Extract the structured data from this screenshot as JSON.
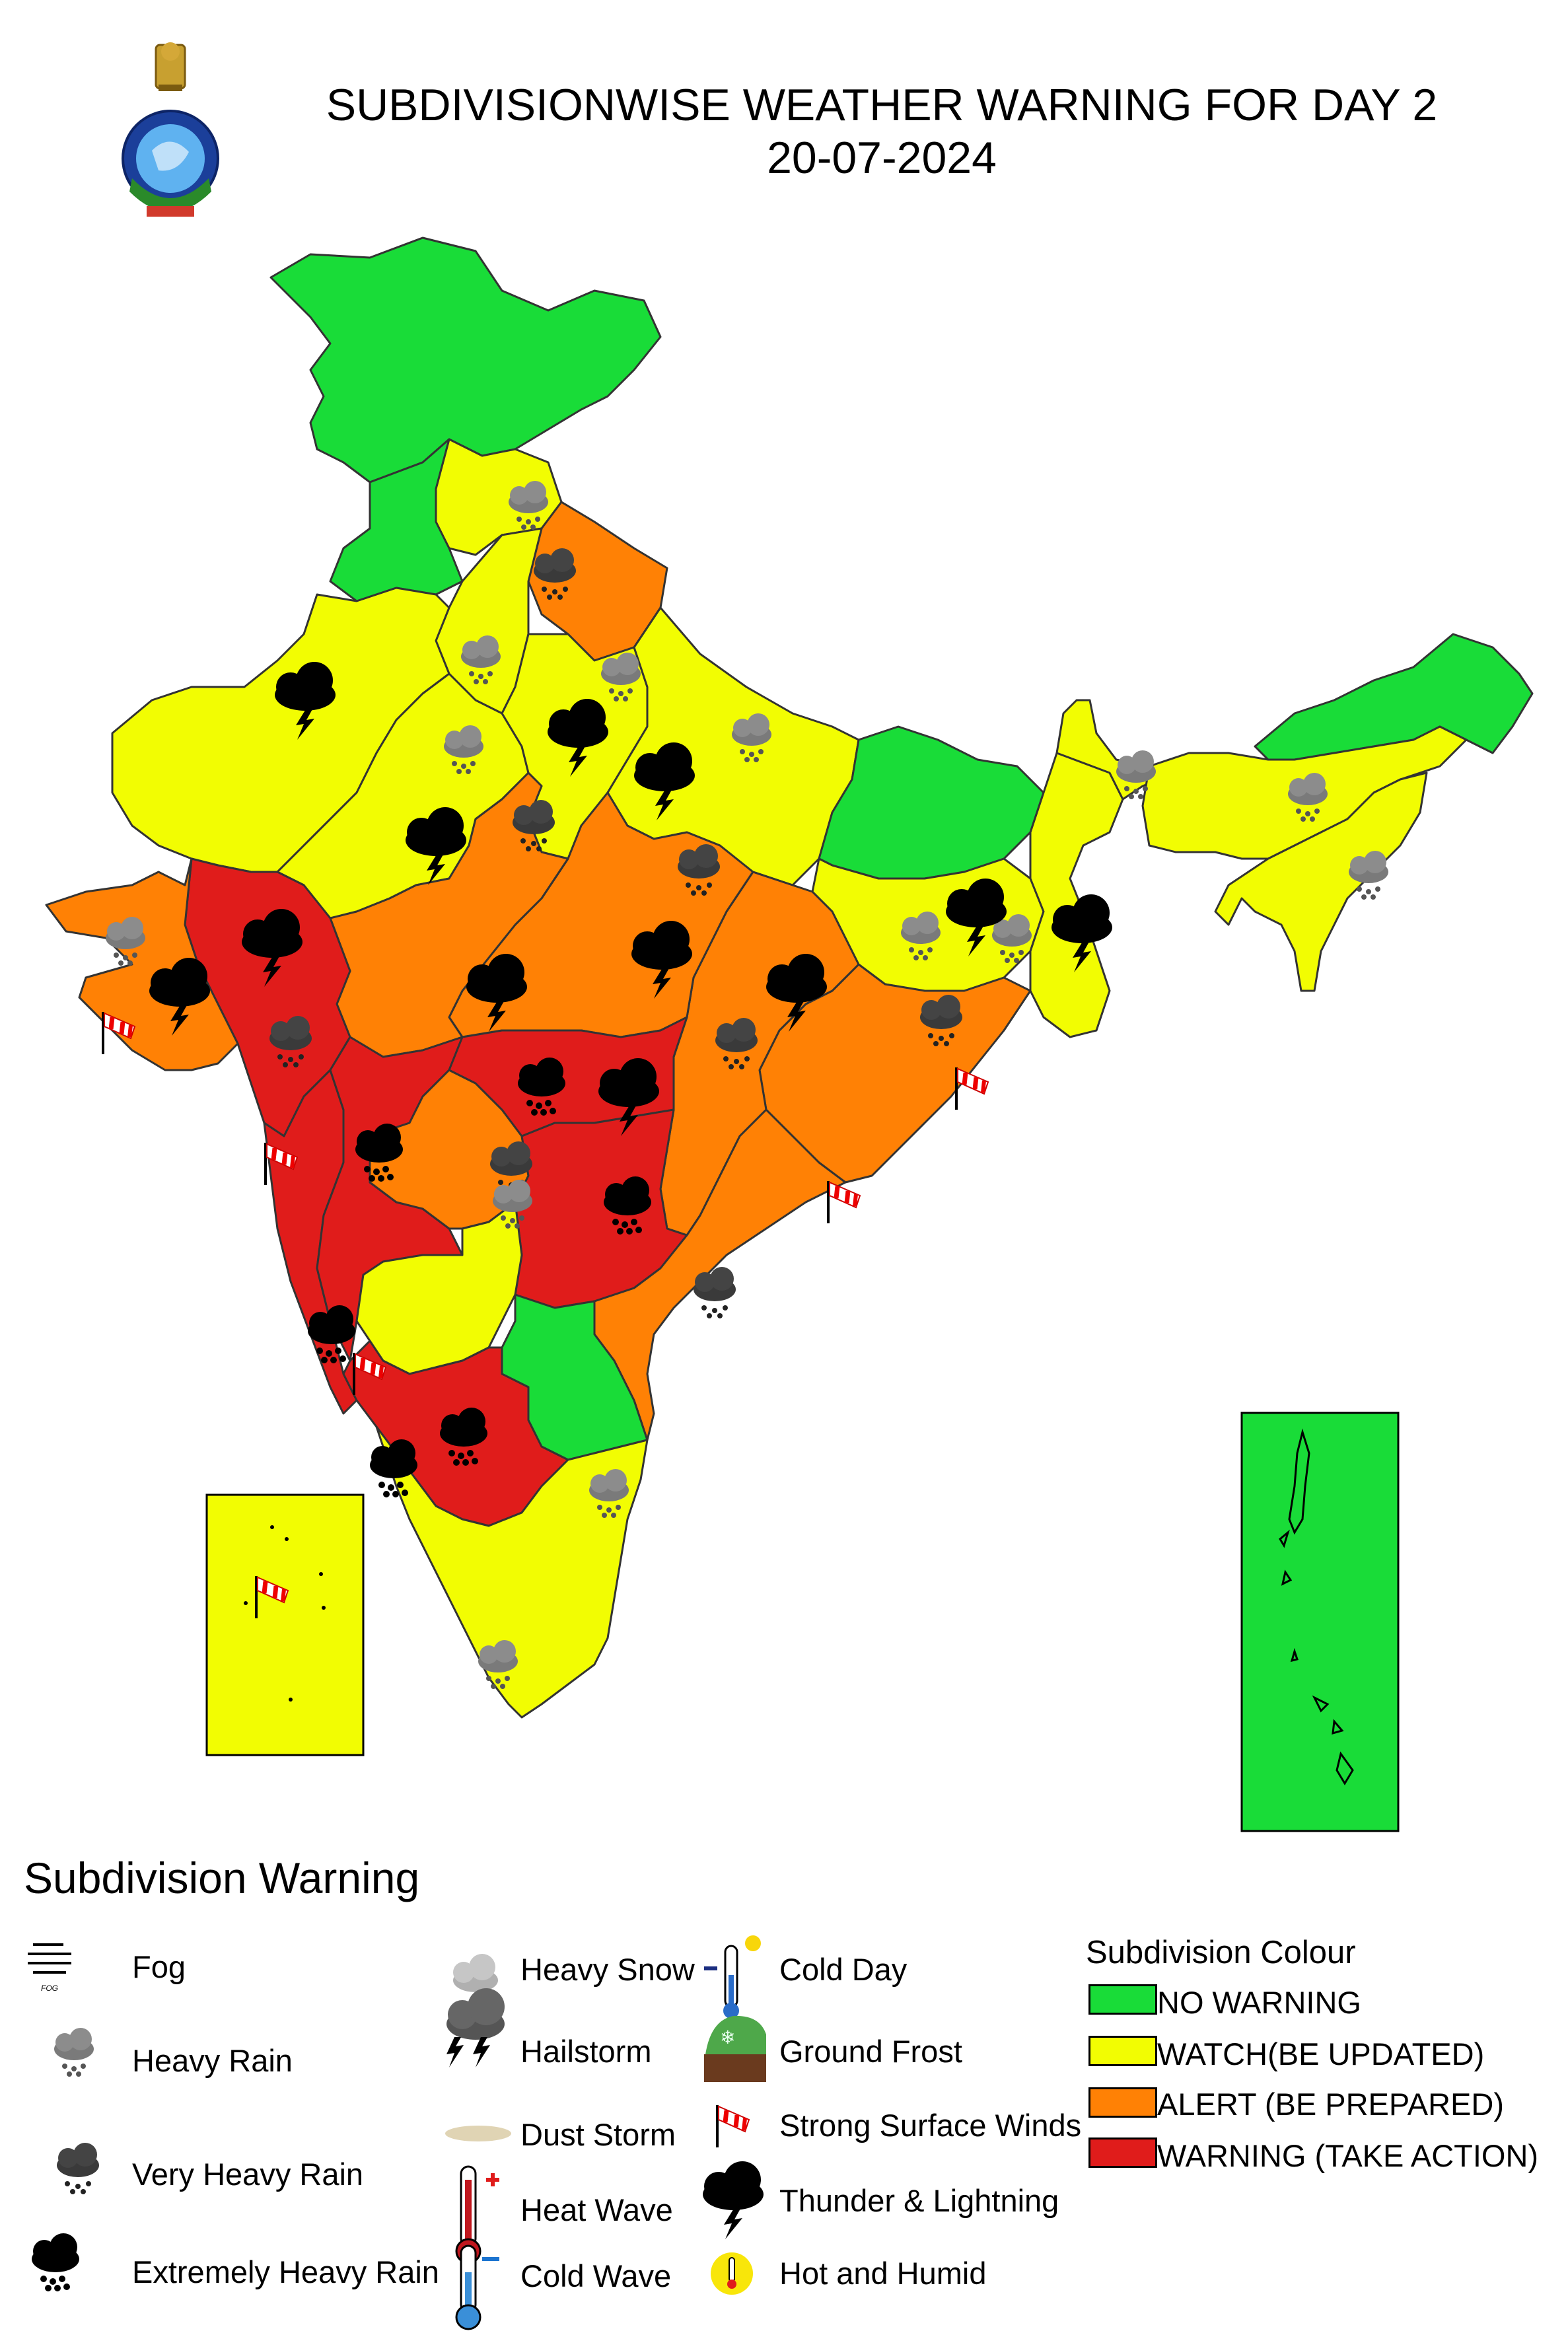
{
  "header": {
    "title": "SUBDIVISIONWISE WEATHER WARNING FOR DAY 2",
    "date": "20-07-2024",
    "emblem": "imd-emblem-icon"
  },
  "colors": {
    "no_warning": "#19dc38",
    "watch": "#f2fd02",
    "alert": "#ff8105",
    "warning": "#e01c1b",
    "outline": "#333333"
  },
  "legend": {
    "heading": "Subdivision Warning",
    "phenomena": [
      {
        "icon": "fog-icon",
        "label": "Fog"
      },
      {
        "icon": "heavy-rain-icon",
        "label": "Heavy Rain"
      },
      {
        "icon": "very-heavy-rain-icon",
        "label": "Very Heavy Rain"
      },
      {
        "icon": "extremely-heavy-rain-icon",
        "label": "Extremely Heavy Rain"
      },
      {
        "icon": "heavy-snow-icon",
        "label": "Heavy Snow"
      },
      {
        "icon": "hailstorm-icon",
        "label": "Hailstorm"
      },
      {
        "icon": "dust-storm-icon",
        "label": "Dust Storm"
      },
      {
        "icon": "heat-wave-icon",
        "label": "Heat Wave"
      },
      {
        "icon": "cold-wave-icon",
        "label": "Cold Wave"
      },
      {
        "icon": "cold-day-icon",
        "label": "Cold Day"
      },
      {
        "icon": "ground-frost-icon",
        "label": "Ground Frost"
      },
      {
        "icon": "strong-surface-winds-icon",
        "label": "Strong Surface Winds"
      },
      {
        "icon": "thunder-lightning-icon",
        "label": "Thunder & Lightning"
      },
      {
        "icon": "hot-humid-icon",
        "label": "Hot and Humid"
      }
    ],
    "colour_heading": "Subdivision Colour",
    "colour_levels": [
      {
        "label": "NO WARNING",
        "level": "no_warning"
      },
      {
        "label": "WATCH(BE UPDATED)",
        "level": "watch"
      },
      {
        "label": "ALERT (BE PREPARED)",
        "level": "alert"
      },
      {
        "label": "WARNING (TAKE ACTION)",
        "level": "warning"
      }
    ]
  }
}
